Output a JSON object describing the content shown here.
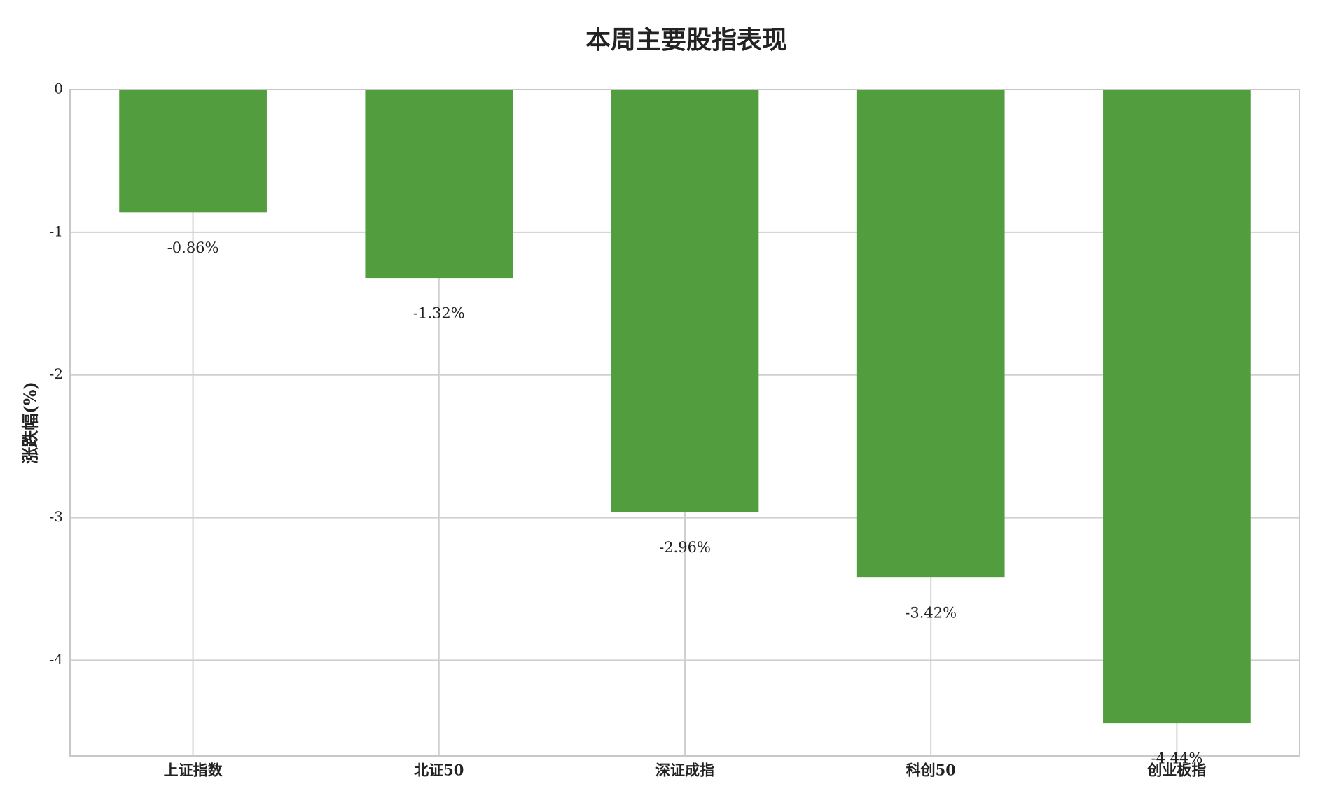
{
  "chart_data": {
    "type": "bar",
    "title": "本周主要股指表现",
    "ylabel": "涨跌幅(%)",
    "categories": [
      "上证指数",
      "北证50",
      "深证成指",
      "科创50",
      "创业板指"
    ],
    "values": [
      -0.86,
      -1.32,
      -2.96,
      -3.42,
      -4.44
    ],
    "value_labels": [
      "-0.86%",
      "-1.32%",
      "-2.96%",
      "-3.42%",
      "-4.44%"
    ],
    "color": "#529e3e",
    "ylim": [
      -4.67,
      0
    ],
    "yticks": [
      0,
      -1,
      -2,
      -3,
      -4
    ],
    "grid": true
  }
}
